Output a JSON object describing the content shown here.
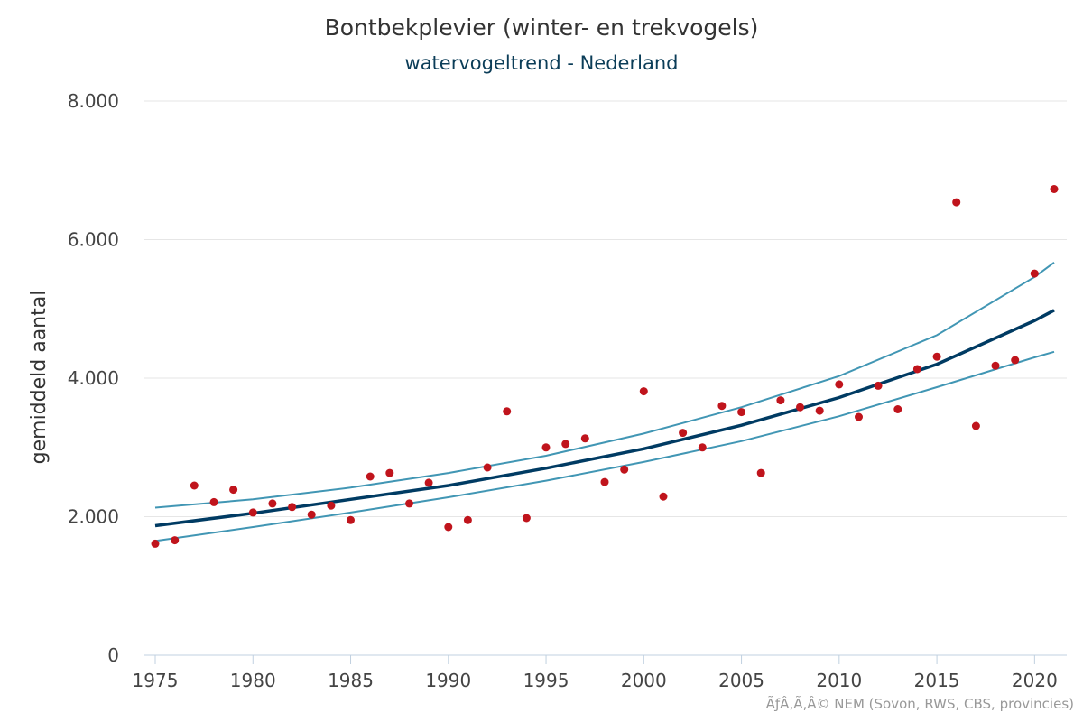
{
  "chart_data": {
    "type": "scatter",
    "title": "Bontbekplevier (winter- en trekvogels)",
    "subtitle": "watervogeltrend - Nederland",
    "xlabel": "",
    "ylabel": "gemiddeld aantal",
    "xlim": [
      1975,
      2021
    ],
    "ylim": [
      0,
      8000
    ],
    "x_ticks": [
      1975,
      1980,
      1985,
      1990,
      1995,
      2000,
      2005,
      2010,
      2015,
      2020
    ],
    "x_tick_labels": [
      "1975",
      "1980",
      "1985",
      "1990",
      "1995",
      "2000",
      "2005",
      "2010",
      "2015",
      "2020"
    ],
    "y_ticks": [
      0,
      2000,
      4000,
      6000,
      8000
    ],
    "y_tick_labels": [
      "0",
      "2.000",
      "4.000",
      "6.000",
      "8.000"
    ],
    "grid": true,
    "credits": "ÃƒÂ‚Ã‚Â© NEM (Sovon, RWS, CBS, provincies)",
    "colors": {
      "points": "#c0141c",
      "trend": "#003b63",
      "band": "#4196b4",
      "grid": "#e6e6e6",
      "axis": "#c0d0e0"
    },
    "series": [
      {
        "type": "scatter",
        "x": [
          1975,
          1976,
          1977,
          1978,
          1979,
          1980,
          1981,
          1982,
          1983,
          1984,
          1985,
          1986,
          1987,
          1988,
          1989,
          1990,
          1991,
          1992,
          1993,
          1994,
          1995,
          1996,
          1997,
          1998,
          1999,
          2000,
          2001,
          2002,
          2003,
          2004,
          2005,
          2006,
          2007,
          2008,
          2009,
          2010,
          2011,
          2012,
          2013,
          2014,
          2015,
          2016,
          2017,
          2018,
          2019,
          2020,
          2021
        ],
        "y": [
          1610,
          1660,
          2450,
          2210,
          2390,
          2060,
          2190,
          2140,
          2030,
          2160,
          1950,
          2580,
          2630,
          2190,
          2490,
          1850,
          1950,
          2710,
          3520,
          1980,
          3000,
          3050,
          3130,
          2500,
          2680,
          3810,
          2290,
          3210,
          3000,
          3600,
          3510,
          2630,
          3680,
          3580,
          3530,
          3910,
          3440,
          3890,
          3550,
          4130,
          4310,
          6540,
          3310,
          4180,
          4260,
          5510,
          6730
        ]
      },
      {
        "type": "line",
        "x": [
          1975,
          1980,
          1985,
          1990,
          1995,
          2000,
          2005,
          2010,
          2015,
          2020,
          2021
        ],
        "y": [
          1870,
          2050,
          2250,
          2450,
          2700,
          2980,
          3320,
          3720,
          4200,
          4830,
          4980
        ]
      },
      {
        "type": "line",
        "x": [
          1975,
          1980,
          1985,
          1990,
          1995,
          2000,
          2005,
          2010,
          2015,
          2020,
          2021
        ],
        "y": [
          2130,
          2250,
          2420,
          2630,
          2880,
          3200,
          3580,
          4030,
          4620,
          5460,
          5670
        ]
      },
      {
        "type": "line",
        "x": [
          1975,
          1980,
          1985,
          1990,
          1995,
          2000,
          2005,
          2010,
          2015,
          2020,
          2021
        ],
        "y": [
          1650,
          1850,
          2060,
          2280,
          2520,
          2790,
          3090,
          3450,
          3870,
          4300,
          4380
        ]
      }
    ]
  }
}
